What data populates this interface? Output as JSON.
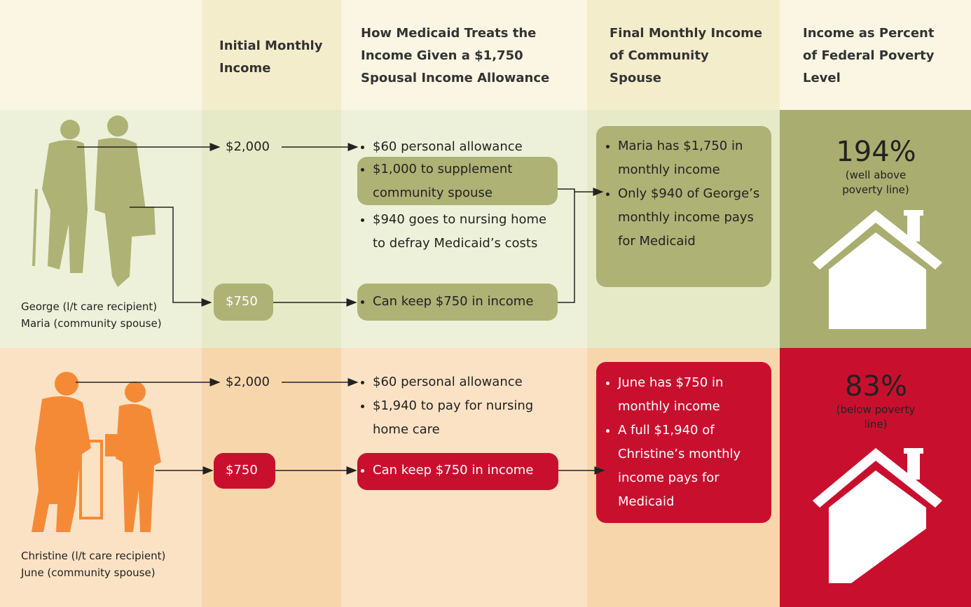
{
  "header": {
    "columns": [
      "Initial Monthly Income",
      "How Medicaid Treats the Income Given a $1,750 Spousal Income Allowance",
      "Final Monthly Income of Community Spouse",
      "Income as Percent of Federal Poverty Level"
    ]
  },
  "rows": [
    {
      "people": [
        "George (l/t care recipient)",
        "Maria (community spouse)"
      ],
      "incomes": [
        "$2,000",
        "$750"
      ],
      "treatment": [
        "$60 personal allowance",
        "$1,000 to supplement community spouse",
        "$940 goes to nursing home to defray Medicaid’s costs",
        "Can keep $750 in income"
      ],
      "final": [
        "Maria has $1,750 in monthly income",
        "Only $940 of George’s monthly income pays for Medicaid"
      ],
      "percent": "194%",
      "percent_note": "(well above poverty line)"
    },
    {
      "people": [
        "Christine (l/t care recipient)",
        "June (community spouse)"
      ],
      "incomes": [
        "$2,000",
        "$750"
      ],
      "treatment": [
        "$60 personal allowance",
        "$1,940 to pay for nursing home care",
        "Can keep $750 in income"
      ],
      "final": [
        "June has $750 in monthly income",
        "A full $1,940 of Christine’s monthly income pays for Medicaid"
      ],
      "percent": "83%",
      "percent_note": "(below poverty line)"
    }
  ]
}
